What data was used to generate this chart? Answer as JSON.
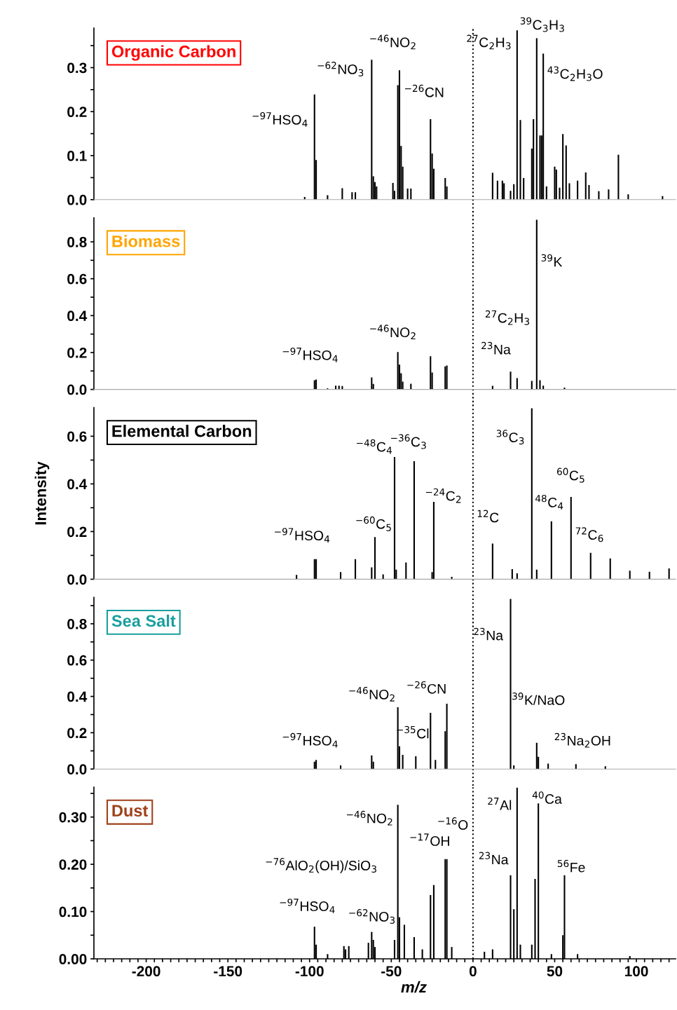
{
  "chart_data": [
    {
      "type": "bar",
      "title": "Organic Carbon",
      "xlim": [
        -232,
        124
      ],
      "ylim": [
        0,
        0.39
      ],
      "tick_labels": "y",
      "yticks": [
        {
          "value": 0,
          "label": "0.0"
        },
        {
          "value": 0.05,
          "label": null
        },
        {
          "value": 0.1,
          "label": "0.1"
        },
        {
          "value": 0.15,
          "label": null
        },
        {
          "value": 0.2,
          "label": "0.2"
        },
        {
          "value": 0.25,
          "label": null
        },
        {
          "value": 0.3,
          "label": "0.3"
        },
        {
          "value": 0.35,
          "label": null
        }
      ],
      "x": [
        -103,
        -97,
        -96,
        -89,
        -80,
        -74,
        -72,
        -62,
        -61,
        -60,
        -59,
        -49,
        -48,
        -46,
        -45,
        -44,
        -43,
        -40,
        -38,
        -26,
        -25,
        -24,
        -17,
        -16,
        12,
        15,
        18,
        19,
        23,
        25,
        27,
        29,
        31,
        36,
        37,
        39,
        41,
        42,
        43,
        45,
        50,
        51,
        53,
        55,
        57,
        59,
        64,
        69,
        71,
        77,
        83,
        89,
        95,
        116
      ],
      "values": [
        0.006,
        0.239,
        0.09,
        0.01,
        0.026,
        0.017,
        0.017,
        0.318,
        0.053,
        0.04,
        0.03,
        0.038,
        0.02,
        0.26,
        0.294,
        0.122,
        0.075,
        0.025,
        0.025,
        0.183,
        0.105,
        0.07,
        0.049,
        0.03,
        0.061,
        0.043,
        0.043,
        0.037,
        0.02,
        0.035,
        0.385,
        0.181,
        0.049,
        0.116,
        0.183,
        0.367,
        0.146,
        0.146,
        0.332,
        0.03,
        0.075,
        0.068,
        0.027,
        0.149,
        0.123,
        0.037,
        0.043,
        0.062,
        0.033,
        0.019,
        0.023,
        0.102,
        0.012,
        0.008
      ],
      "color": "#000000",
      "ref_lines": [
        {
          "axis": "x",
          "value": 0,
          "line_style": "dotted"
        }
      ],
      "annotations": [
        "$^{−97}$HSO$_{4}$",
        "$^{−62}$NO$_{3}$",
        "$^{−46}$NO$_{2}$",
        "$^{−26}$CN",
        "$^{27}$C$_{2}$H$_{3}$",
        "$^{39}$C$_{3}$H$_{3}$",
        "$^{43}$C$_{2}$H$_{3}$O"
      ]
    },
    {
      "type": "bar",
      "title": "Biomass",
      "xlim": [
        -232,
        124
      ],
      "ylim": [
        0,
        0.93
      ],
      "tick_labels": "y",
      "yticks": [
        {
          "value": 0,
          "label": "0.0"
        },
        {
          "value": 0.1,
          "label": null
        },
        {
          "value": 0.2,
          "label": "0.2"
        },
        {
          "value": 0.3,
          "label": null
        },
        {
          "value": 0.4,
          "label": "0.4"
        },
        {
          "value": 0.5,
          "label": null
        },
        {
          "value": 0.6,
          "label": "0.6"
        },
        {
          "value": 0.7,
          "label": null
        },
        {
          "value": 0.8,
          "label": "0.8"
        }
      ],
      "x": [
        -97,
        -96,
        -89,
        -84,
        -82,
        -80,
        -62,
        -61,
        -46,
        -45,
        -44,
        -43,
        -38,
        -26,
        -25,
        -17,
        -16,
        12,
        23,
        27,
        36,
        39,
        41,
        43,
        56
      ],
      "values": [
        0.05,
        0.054,
        0.006,
        0.02,
        0.02,
        0.018,
        0.065,
        0.03,
        0.203,
        0.134,
        0.088,
        0.042,
        0.031,
        0.18,
        0.092,
        0.125,
        0.13,
        0.019,
        0.096,
        0.061,
        0.046,
        0.92,
        0.05,
        0.02,
        0.01
      ],
      "color": "#000000",
      "ref_lines": [
        {
          "axis": "x",
          "value": 0,
          "line_style": "dotted"
        }
      ],
      "annotations": [
        "$^{−97}$HSO$_{4}$",
        "$^{−46}$NO$_{2}$",
        "$^{27}$C$_{2}$H$_{3}$",
        "$^{23}$Na",
        "$^{39}$K"
      ]
    },
    {
      "type": "bar",
      "title": "Elemental Carbon",
      "ylabel": "Intensity",
      "xlim": [
        -232,
        124
      ],
      "ylim": [
        0,
        0.72
      ],
      "tick_labels": "y",
      "yticks": [
        {
          "value": 0,
          "label": "0.0"
        },
        {
          "value": 0.1,
          "label": null
        },
        {
          "value": 0.2,
          "label": "0.2"
        },
        {
          "value": 0.3,
          "label": null
        },
        {
          "value": 0.4,
          "label": "0.4"
        },
        {
          "value": 0.5,
          "label": null
        },
        {
          "value": 0.6,
          "label": "0.6"
        }
      ],
      "x": [
        -108,
        -97,
        -96,
        -81,
        -72,
        -62,
        -60,
        -55,
        -48,
        -47,
        -41,
        -36,
        -25,
        -24,
        -13,
        12,
        24,
        27,
        36,
        39,
        48,
        60,
        72,
        84,
        96,
        108,
        120
      ],
      "values": [
        0.018,
        0.084,
        0.084,
        0.03,
        0.084,
        0.05,
        0.177,
        0.02,
        0.513,
        0.04,
        0.07,
        0.495,
        0.03,
        0.325,
        0.01,
        0.15,
        0.042,
        0.025,
        0.717,
        0.04,
        0.243,
        0.345,
        0.111,
        0.087,
        0.036,
        0.031,
        0.045
      ],
      "color": "#000000",
      "ref_lines": [
        {
          "axis": "x",
          "value": 0,
          "line_style": "dotted"
        }
      ],
      "annotations": [
        "$^{−97}$HSO$_{4}$",
        "$^{−60}$C$_{5}$",
        "$^{−48}$C$_{4}$",
        "$^{−36}$C$_{3}$",
        "$^{−24}$C$_{2}$",
        "$^{12}$C",
        "$^{36}$C$_{3}$",
        "$^{48}$C$_{4}$",
        "$^{60}$C$_{5}$",
        "$^{72}$C$_{6}$"
      ]
    },
    {
      "type": "bar",
      "title": "Sea Salt",
      "xlim": [
        -232,
        124
      ],
      "ylim": [
        0,
        0.945
      ],
      "tick_labels": "y",
      "yticks": [
        {
          "value": 0,
          "label": "0.0"
        },
        {
          "value": 0.1,
          "label": null
        },
        {
          "value": 0.2,
          "label": "0.2"
        },
        {
          "value": 0.3,
          "label": null
        },
        {
          "value": 0.4,
          "label": "0.4"
        },
        {
          "value": 0.5,
          "label": null
        },
        {
          "value": 0.6,
          "label": "0.6"
        },
        {
          "value": 0.7,
          "label": null
        },
        {
          "value": 0.8,
          "label": "0.8"
        },
        {
          "value": 0.9,
          "label": null
        }
      ],
      "x": [
        -97,
        -96,
        -81,
        -62,
        -61,
        -46,
        -45,
        -43,
        -35,
        -26,
        -23,
        -17,
        -16,
        23,
        25,
        39,
        40,
        46,
        63,
        81
      ],
      "values": [
        0.04,
        0.05,
        0.02,
        0.075,
        0.04,
        0.34,
        0.125,
        0.078,
        0.07,
        0.31,
        0.05,
        0.208,
        0.36,
        0.937,
        0.02,
        0.145,
        0.067,
        0.03,
        0.027,
        0.015
      ],
      "color": "#000000",
      "ref_lines": [
        {
          "axis": "x",
          "value": 0,
          "line_style": "dotted"
        }
      ],
      "annotations": [
        "$^{−97}$HSO$_{4}$",
        "$^{−46}$NO$_{2}$",
        "$^{−35}$Cl",
        "$^{−26}$CN",
        "$^{23}$Na",
        "$^{39}$K/NaO",
        "$^{23}$Na$_{2}$OH"
      ]
    },
    {
      "type": "bar",
      "title": "Dust",
      "xlabel": "m/z",
      "xlim": [
        -232,
        124
      ],
      "ylim": [
        0,
        0.363
      ],
      "xticks": [
        {
          "value": -230,
          "label": null
        },
        {
          "value": -225,
          "label": null
        },
        {
          "value": -220,
          "label": null
        },
        {
          "value": -215,
          "label": null
        },
        {
          "value": -210,
          "label": null
        },
        {
          "value": -205,
          "label": null
        },
        -200,
        {
          "value": -195,
          "label": null
        },
        {
          "value": -190,
          "label": null
        },
        {
          "value": -185,
          "label": null
        },
        {
          "value": -180,
          "label": null
        },
        {
          "value": -175,
          "label": null
        },
        {
          "value": -170,
          "label": null
        },
        {
          "value": -165,
          "label": null
        },
        {
          "value": -160,
          "label": null
        },
        {
          "value": -155,
          "label": null
        },
        -150,
        {
          "value": -145,
          "label": null
        },
        {
          "value": -140,
          "label": null
        },
        {
          "value": -135,
          "label": null
        },
        {
          "value": -130,
          "label": null
        },
        {
          "value": -125,
          "label": null
        },
        {
          "value": -120,
          "label": null
        },
        {
          "value": -115,
          "label": null
        },
        {
          "value": -110,
          "label": null
        },
        {
          "value": -105,
          "label": null
        },
        -100,
        {
          "value": -95,
          "label": null
        },
        {
          "value": -90,
          "label": null
        },
        {
          "value": -85,
          "label": null
        },
        {
          "value": -80,
          "label": null
        },
        {
          "value": -75,
          "label": null
        },
        {
          "value": -70,
          "label": null
        },
        {
          "value": -65,
          "label": null
        },
        {
          "value": -60,
          "label": null
        },
        {
          "value": -55,
          "label": null
        },
        -50,
        {
          "value": -45,
          "label": null
        },
        {
          "value": -40,
          "label": null
        },
        {
          "value": -35,
          "label": null
        },
        {
          "value": -30,
          "label": null
        },
        {
          "value": -25,
          "label": null
        },
        {
          "value": -20,
          "label": null
        },
        {
          "value": -15,
          "label": null
        },
        {
          "value": -10,
          "label": null
        },
        {
          "value": -5,
          "label": null
        },
        0,
        {
          "value": 5,
          "label": null
        },
        {
          "value": 10,
          "label": null
        },
        {
          "value": 15,
          "label": null
        },
        {
          "value": 20,
          "label": null
        },
        {
          "value": 25,
          "label": null
        },
        {
          "value": 30,
          "label": null
        },
        {
          "value": 35,
          "label": null
        },
        {
          "value": 40,
          "label": null
        },
        {
          "value": 45,
          "label": null
        },
        50,
        {
          "value": 55,
          "label": null
        },
        {
          "value": 60,
          "label": null
        },
        {
          "value": 65,
          "label": null
        },
        {
          "value": 70,
          "label": null
        },
        {
          "value": 75,
          "label": null
        },
        {
          "value": 80,
          "label": null
        },
        {
          "value": 85,
          "label": null
        },
        {
          "value": 90,
          "label": null
        },
        {
          "value": 95,
          "label": null
        },
        100,
        {
          "value": 105,
          "label": null
        },
        {
          "value": 110,
          "label": null
        },
        {
          "value": 115,
          "label": null
        },
        {
          "value": 120,
          "label": null
        }
      ],
      "yticks": [
        {
          "value": 0,
          "label": "0.00"
        },
        {
          "value": 0.05,
          "label": null
        },
        {
          "value": 0.1,
          "label": "0.10"
        },
        {
          "value": 0.15,
          "label": null
        },
        {
          "value": 0.2,
          "label": "0.20"
        },
        {
          "value": 0.25,
          "label": null
        },
        {
          "value": 0.3,
          "label": "0.30"
        },
        {
          "value": 0.35,
          "label": null
        }
      ],
      "x": [
        -97,
        -96,
        -89,
        -79,
        -78,
        -76,
        -64,
        -62,
        -61,
        -60,
        -48,
        -46,
        -45,
        -42,
        -36,
        -31,
        -26,
        -24,
        -17,
        -16,
        -13,
        7,
        12,
        23,
        25,
        27,
        29,
        36,
        38,
        40,
        48,
        55,
        56,
        64,
        96
      ],
      "values": [
        0.068,
        0.03,
        0.01,
        0.027,
        0.02,
        0.027,
        0.034,
        0.057,
        0.04,
        0.025,
        0.04,
        0.326,
        0.088,
        0.072,
        0.046,
        0.02,
        0.135,
        0.156,
        0.211,
        0.211,
        0.025,
        0.015,
        0.02,
        0.177,
        0.105,
        0.362,
        0.03,
        0.03,
        0.169,
        0.329,
        0.01,
        0.05,
        0.177,
        0.01,
        0.006
      ],
      "color": "#000000",
      "ref_lines": [
        {
          "axis": "x",
          "value": 0,
          "line_style": "dotted"
        }
      ],
      "annotations": [
        "$^{−76}$AlO$_{2}$(OH)/SiO$_{3}$",
        "$^{−97}$HSO$_{4}$",
        "$^{−62}$NO$_{3}$",
        "$^{−46}$NO$_{2}$",
        "$^{−17}$OH",
        "$^{−16}$O",
        "$^{27}$Al",
        "$^{23}$Na",
        "$^{40}$Ca",
        "$^{56}$Fe"
      ]
    }
  ]
}
